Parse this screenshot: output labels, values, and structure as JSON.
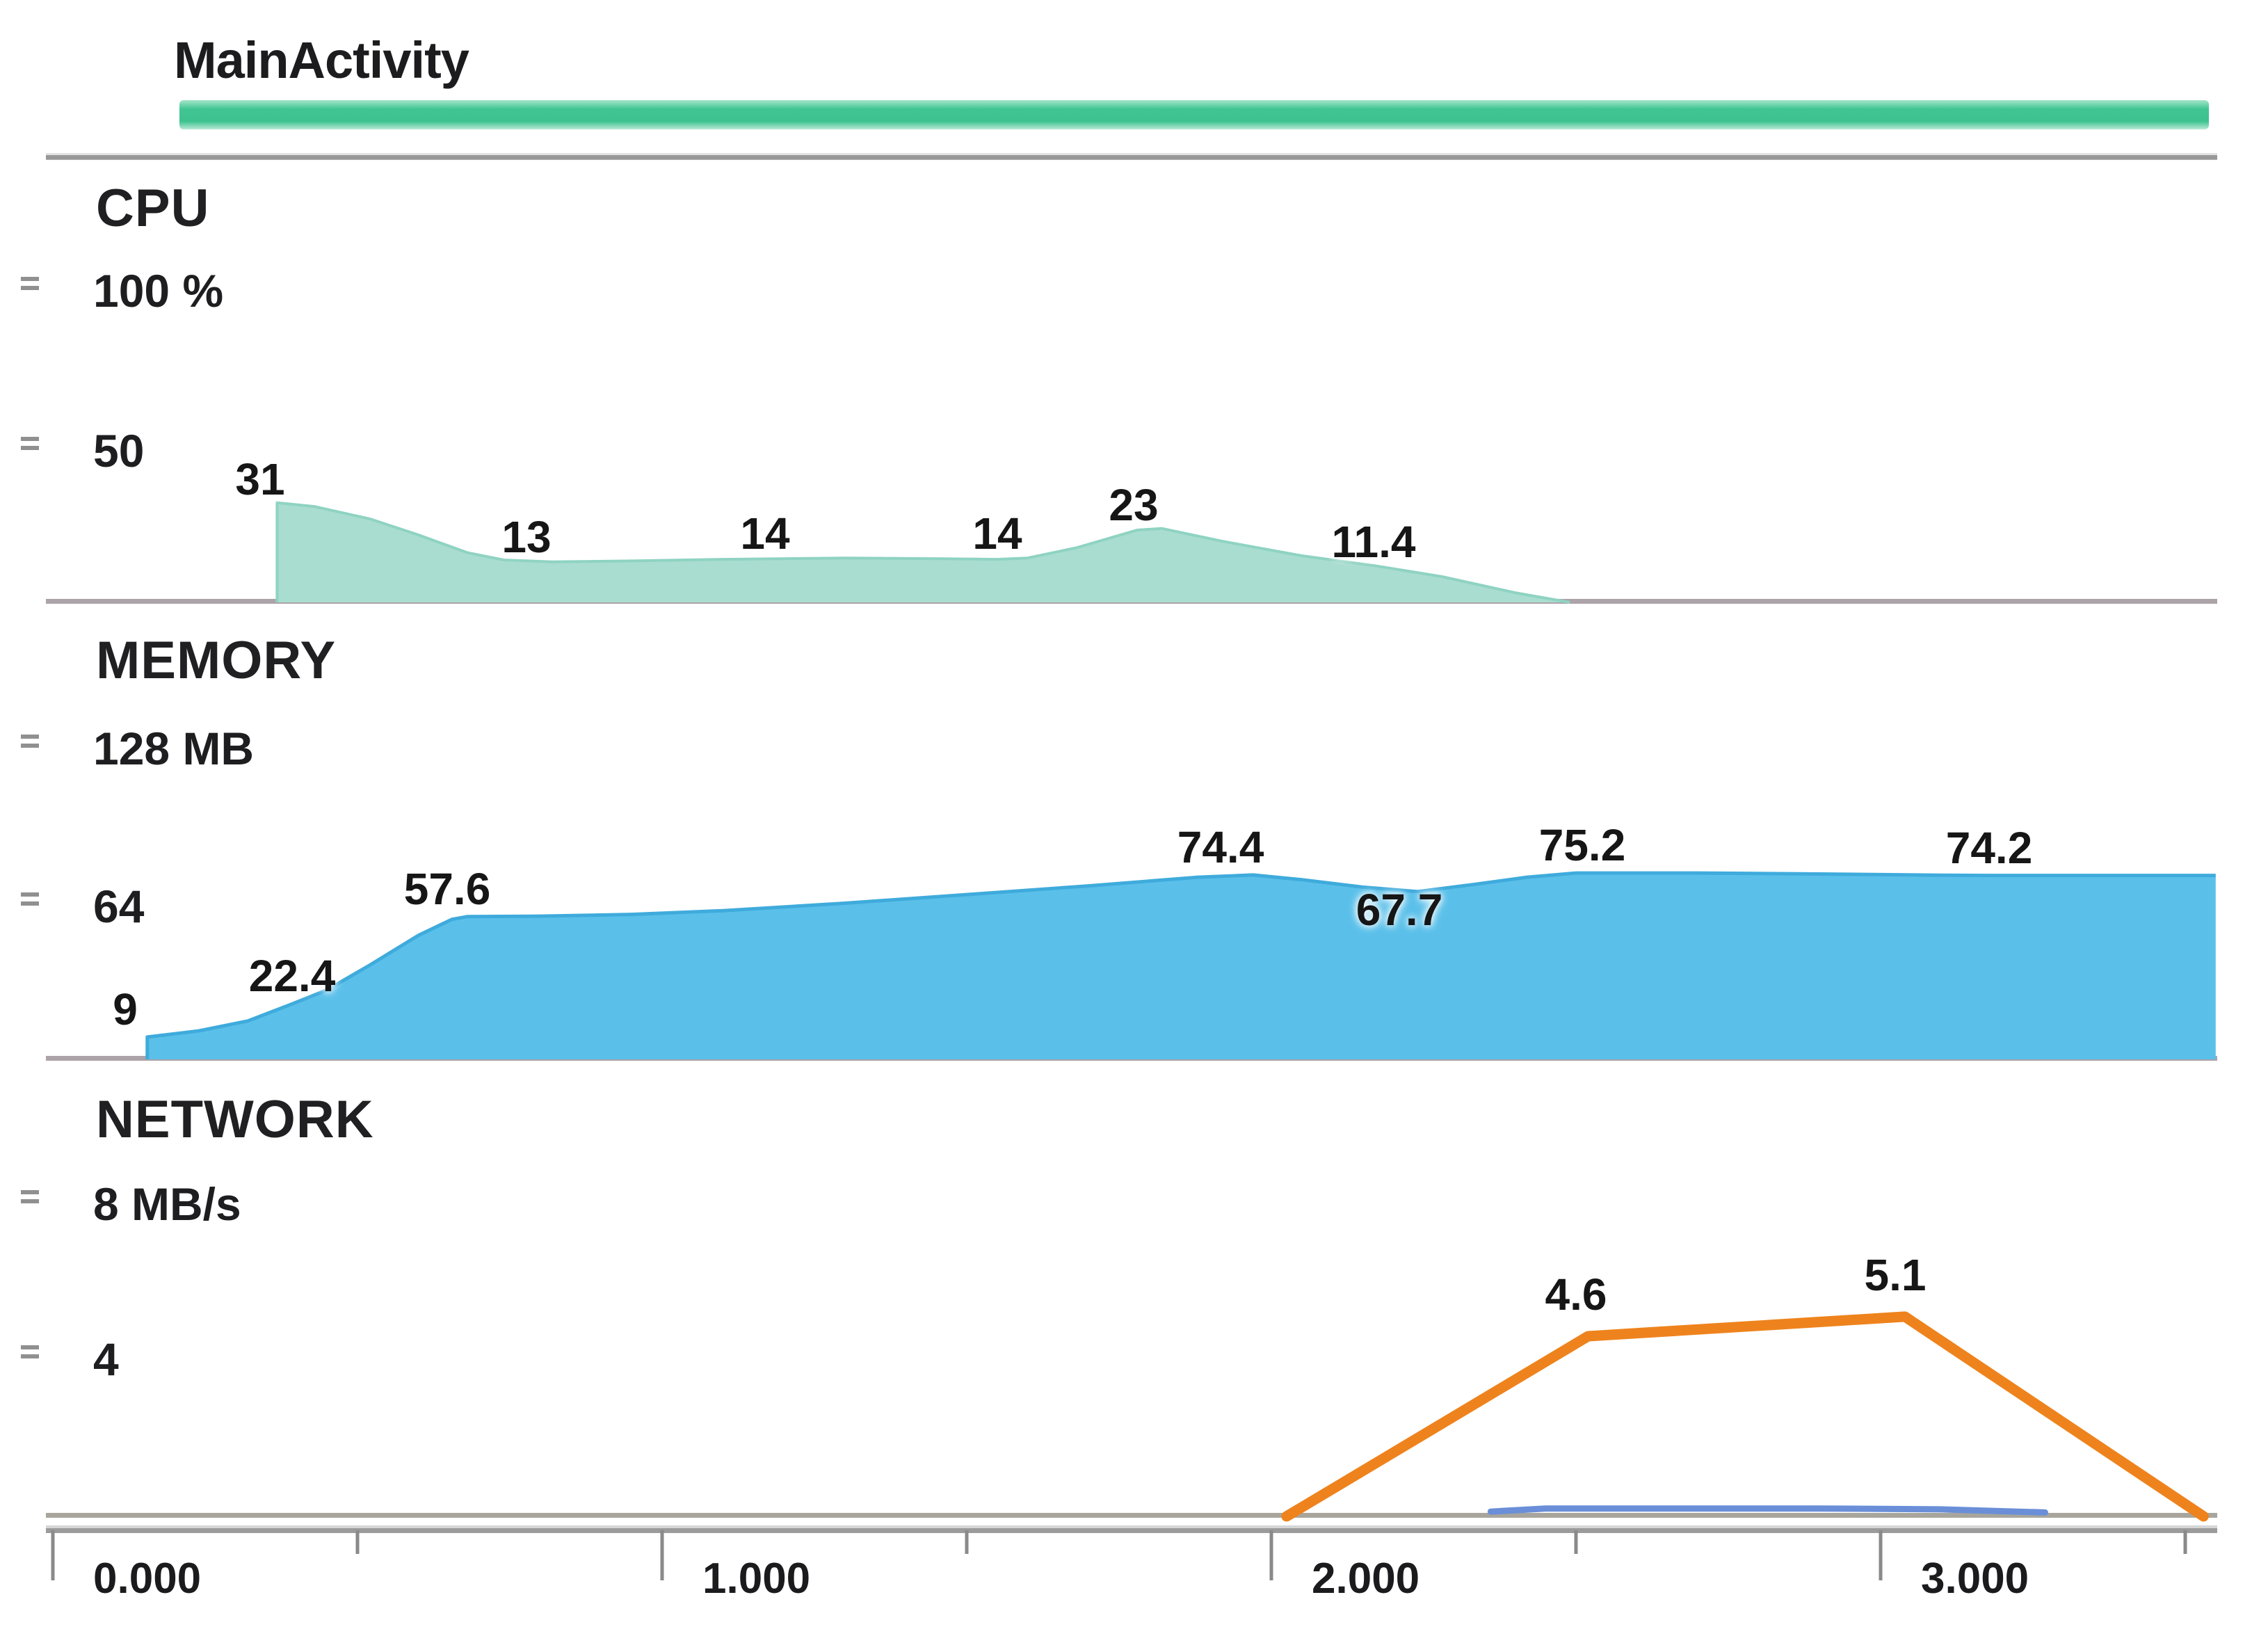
{
  "header": {
    "activity": "MainActivity"
  },
  "sections": {
    "cpu": {
      "title": "CPU",
      "axis_ticks": [
        "100 %",
        "50"
      ]
    },
    "memory": {
      "title": "MEMORY",
      "axis_ticks": [
        "128 MB",
        "64"
      ]
    },
    "network": {
      "title": "NETWORK",
      "axis_ticks": [
        "8 MB/s",
        "4"
      ]
    }
  },
  "x_axis": {
    "unit": "s",
    "tick_labels": [
      "0.000",
      "1.000",
      "2.000",
      "3.000"
    ],
    "major_ticks": [
      0,
      1,
      2,
      3
    ],
    "minor_ticks": [
      0.5,
      1.5,
      2.5,
      3.5
    ]
  },
  "colors": {
    "activity_bar": "#41c593",
    "cpu_fill": "#a9ddd0",
    "cpu_edge": "#8fd3c2",
    "memory_fill": "#5ac0ea",
    "memory_edge": "#3fabdc",
    "network_sent": "#ee831d",
    "network_received": "#6a8fd8"
  },
  "chart_data": [
    {
      "type": "area",
      "title": "CPU",
      "unit": "%",
      "ylim": [
        0,
        100
      ],
      "y_ticks": [
        "100 %",
        "50"
      ],
      "series": [
        {
          "name": "cpu_usage",
          "color": "#a9ddd0",
          "stroke": "#8fd3c2",
          "points": [
            [
              0.368,
              0
            ],
            [
              0.368,
              31
            ],
            [
              0.43,
              29.8
            ],
            [
              0.52,
              26
            ],
            [
              0.6,
              21
            ],
            [
              0.68,
              15.5
            ],
            [
              0.74,
              13.2
            ],
            [
              0.82,
              12.6
            ],
            [
              0.95,
              12.9
            ],
            [
              1.1,
              13.4
            ],
            [
              1.3,
              13.8
            ],
            [
              1.46,
              13.6
            ],
            [
              1.55,
              13.4
            ],
            [
              1.6,
              13.8
            ],
            [
              1.68,
              17
            ],
            [
              1.78,
              22.5
            ],
            [
              1.82,
              23
            ],
            [
              1.92,
              19
            ],
            [
              2.05,
              14.5
            ],
            [
              2.17,
              11.4
            ],
            [
              2.28,
              8
            ],
            [
              2.4,
              3
            ],
            [
              2.49,
              0
            ]
          ]
        }
      ],
      "point_labels": [
        {
          "t": 0.34,
          "value": 31,
          "text": "31"
        },
        {
          "t": 0.777,
          "value": 13,
          "text": "13"
        },
        {
          "t": 1.169,
          "value": 14,
          "text": "14"
        },
        {
          "t": 1.55,
          "value": 14,
          "text": "14"
        },
        {
          "t": 1.774,
          "value": 23,
          "text": "23"
        },
        {
          "t": 2.168,
          "value": 11.4,
          "text": "11.4"
        }
      ]
    },
    {
      "type": "area",
      "title": "MEMORY",
      "unit": "MB",
      "ylim": [
        0,
        128
      ],
      "y_ticks": [
        "128 MB",
        "64"
      ],
      "series": [
        {
          "name": "memory_usage",
          "color": "#5ac0ea",
          "stroke": "#3fabdc",
          "points": [
            [
              0.155,
              0
            ],
            [
              0.155,
              9
            ],
            [
              0.24,
              11.5
            ],
            [
              0.32,
              15.5
            ],
            [
              0.393,
              22.4
            ],
            [
              0.45,
              28
            ],
            [
              0.52,
              38
            ],
            [
              0.6,
              50
            ],
            [
              0.655,
              56.5
            ],
            [
              0.68,
              57.6
            ],
            [
              0.8,
              57.8
            ],
            [
              0.95,
              58.5
            ],
            [
              1.1,
              60
            ],
            [
              1.3,
              63
            ],
            [
              1.5,
              66.5
            ],
            [
              1.7,
              70
            ],
            [
              1.88,
              73.5
            ],
            [
              1.97,
              74.4
            ],
            [
              2.05,
              72.5
            ],
            [
              2.15,
              69.5
            ],
            [
              2.24,
              67.7
            ],
            [
              2.33,
              70.5
            ],
            [
              2.42,
              73.5
            ],
            [
              2.5,
              75.2
            ],
            [
              2.7,
              75.2
            ],
            [
              2.9,
              74.8
            ],
            [
              3.1,
              74.3
            ],
            [
              3.178,
              74.2
            ],
            [
              3.55,
              74.2
            ]
          ]
        }
      ],
      "point_labels": [
        {
          "t": 0.119,
          "value": 9,
          "text": "9"
        },
        {
          "t": 0.393,
          "value": 22.4,
          "text": "22.4"
        },
        {
          "t": 0.647,
          "value": 57.6,
          "text": "57.6"
        },
        {
          "t": 1.917,
          "value": 74.4,
          "text": "74.4"
        },
        {
          "t": 2.21,
          "value": 67.7,
          "text": "67.7",
          "placement": "below"
        },
        {
          "t": 2.51,
          "value": 75.2,
          "text": "75.2"
        },
        {
          "t": 3.178,
          "value": 74.2,
          "text": "74.2"
        }
      ]
    },
    {
      "type": "line",
      "title": "NETWORK",
      "unit": "MB/s",
      "ylim": [
        0,
        8
      ],
      "y_ticks": [
        "8 MB/s",
        "4"
      ],
      "series": [
        {
          "name": "network_sent",
          "color": "#ee831d",
          "points": [
            [
              2.025,
              0
            ],
            [
              2.52,
              4.6
            ],
            [
              3.04,
              5.1
            ],
            [
              3.53,
              0
            ]
          ]
        },
        {
          "name": "network_received",
          "color": "#6a8fd8",
          "points": [
            [
              2.36,
              0.12
            ],
            [
              2.45,
              0.2
            ],
            [
              2.9,
              0.2
            ],
            [
              3.1,
              0.18
            ],
            [
              3.27,
              0.1
            ]
          ]
        }
      ],
      "point_labels": [
        {
          "t": 2.5,
          "value": 4.6,
          "text": "4.6"
        },
        {
          "t": 3.024,
          "value": 5.1,
          "text": "5.1"
        }
      ]
    }
  ]
}
